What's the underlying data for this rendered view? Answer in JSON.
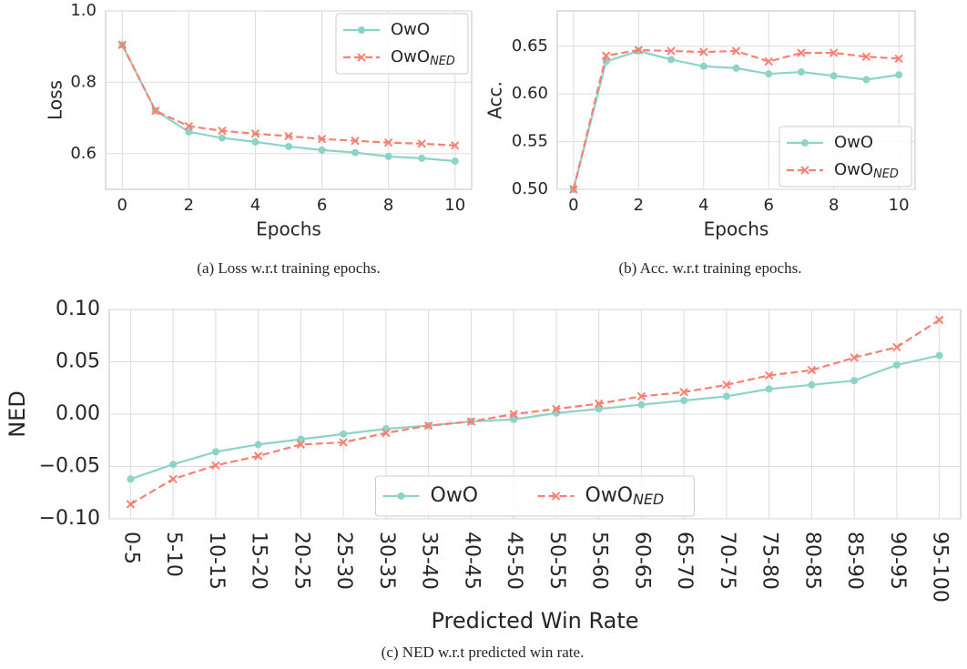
{
  "chart_data": [
    {
      "type": "line",
      "caption": "(a) Loss w.r.t training epochs.",
      "xlabel": "Epochs",
      "ylabel": "Loss",
      "x": [
        0,
        1,
        2,
        3,
        4,
        5,
        6,
        7,
        8,
        9,
        10
      ],
      "xlim": [
        -0.5,
        10.5
      ],
      "xticks": [
        0,
        2,
        4,
        6,
        8,
        10
      ],
      "ylim": [
        0.5,
        1.0
      ],
      "yticks": [
        0.6,
        0.8,
        {
          "value": 1.0,
          "label": "1.0"
        }
      ],
      "grid": true,
      "legend": "upper right",
      "series": [
        {
          "name": "OwO",
          "color": "#8dd3c7",
          "marker": "o",
          "linestyle": "solid",
          "values": [
            0.905,
            0.72,
            0.661,
            0.644,
            0.633,
            0.62,
            0.61,
            0.603,
            0.592,
            0.587,
            0.579
          ]
        },
        {
          "name": "OwO",
          "subscript": "NED",
          "color": "#fa8072",
          "marker": "x",
          "linestyle": "dashed",
          "values": [
            0.905,
            0.72,
            0.677,
            0.664,
            0.656,
            0.649,
            0.641,
            0.636,
            0.631,
            0.628,
            0.623
          ]
        }
      ]
    },
    {
      "type": "line",
      "caption": "(b) Acc. w.r.t training epochs.",
      "xlabel": "Epochs",
      "ylabel": "Acc.",
      "x": [
        0,
        1,
        2,
        3,
        4,
        5,
        6,
        7,
        8,
        9,
        10
      ],
      "xlim": [
        -0.5,
        10.5
      ],
      "xticks": [
        0,
        2,
        4,
        6,
        8,
        10
      ],
      "ylim": [
        0.5,
        0.687
      ],
      "yticks": [
        {
          "value": 0.5,
          "label": "0.50"
        },
        0.55,
        {
          "value": 0.6,
          "label": "0.60"
        },
        0.65
      ],
      "grid": true,
      "legend": "lower right",
      "series": [
        {
          "name": "OwO",
          "color": "#8dd3c7",
          "marker": "o",
          "linestyle": "solid",
          "values": [
            0.5,
            0.634,
            0.645,
            0.636,
            0.629,
            0.627,
            0.621,
            0.623,
            0.619,
            0.615,
            0.62
          ]
        },
        {
          "name": "OwO",
          "subscript": "NED",
          "color": "#fa8072",
          "marker": "x",
          "linestyle": "dashed",
          "values": [
            0.5,
            0.64,
            0.646,
            0.645,
            0.644,
            0.645,
            0.634,
            0.643,
            0.643,
            0.639,
            0.637
          ]
        }
      ]
    },
    {
      "type": "line",
      "caption": "(c) NED w.r.t predicted win rate.",
      "xlabel": "Predicted Win Rate",
      "ylabel": "NED",
      "categories": [
        "0-5",
        "5-10",
        "10-15",
        "15-20",
        "20-25",
        "25-30",
        "30-35",
        "35-40",
        "40-45",
        "45-50",
        "50-55",
        "55-60",
        "60-65",
        "65-70",
        "70-75",
        "75-80",
        "80-85",
        "85-90",
        "90-95",
        "95-100"
      ],
      "ylim": [
        -0.1,
        0.1
      ],
      "yticks": [
        {
          "value": -0.1,
          "label": "−0.10"
        },
        {
          "value": -0.05,
          "label": "−0.05"
        },
        {
          "value": 0,
          "label": "0.00"
        },
        0.05,
        {
          "value": 0.1,
          "label": "0.10"
        }
      ],
      "grid": true,
      "legend": "lower center",
      "legend_columns": 2,
      "series": [
        {
          "name": "OwO",
          "color": "#8dd3c7",
          "marker": "o",
          "linestyle": "solid",
          "values": [
            -0.062,
            -0.048,
            -0.036,
            -0.029,
            -0.024,
            -0.019,
            -0.014,
            -0.011,
            -0.007,
            -0.005,
            0.001,
            0.005,
            0.009,
            0.013,
            0.017,
            0.024,
            0.028,
            0.032,
            0.047,
            0.056
          ]
        },
        {
          "name": "OwO",
          "subscript": "NED",
          "color": "#fa8072",
          "marker": "x",
          "linestyle": "dashed",
          "values": [
            -0.086,
            -0.062,
            -0.049,
            -0.04,
            -0.029,
            -0.027,
            -0.018,
            -0.011,
            -0.007,
            0,
            0.005,
            0.01,
            0.017,
            0.021,
            0.028,
            0.037,
            0.042,
            0.054,
            0.064,
            0.09
          ]
        }
      ]
    }
  ]
}
